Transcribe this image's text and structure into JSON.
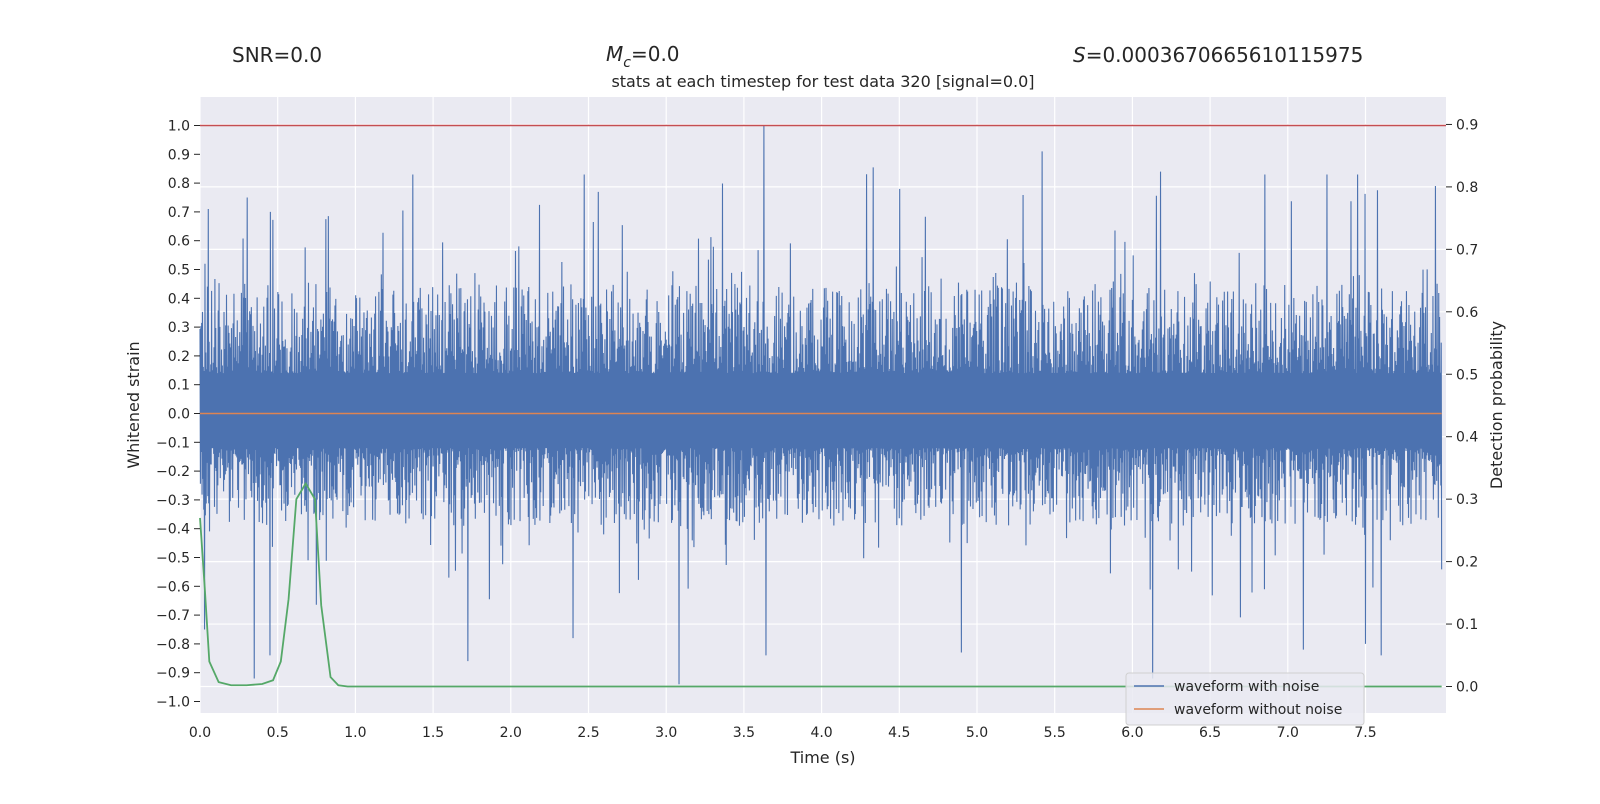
{
  "header": {
    "snr_label": "SNR=0.0",
    "mc_symbol": "M",
    "mc_subscript": "c",
    "mc_value": "=0.0",
    "s_symbol": "S",
    "s_value": "=0.0003670665610115975"
  },
  "chart_data": {
    "type": "line",
    "title": "stats at each timestep for test data 320 [signal=0.0]",
    "xlabel": "Time (s)",
    "ylabel": "Whitened strain",
    "y2label": "Detection probability",
    "xlim": [
      0.0,
      8.0
    ],
    "ylim": [
      -1.05,
      1.05
    ],
    "y2lim": [
      -0.055,
      0.945
    ],
    "xticks": [
      "0.0",
      "0.5",
      "1.0",
      "1.5",
      "2.0",
      "2.5",
      "3.0",
      "3.5",
      "4.0",
      "4.5",
      "5.0",
      "5.5",
      "6.0",
      "6.5",
      "7.0",
      "7.5"
    ],
    "yticks": [
      "1.0",
      "0.9",
      "0.8",
      "0.7",
      "0.6",
      "0.5",
      "0.4",
      "0.3",
      "0.2",
      "0.1",
      "0.0",
      "−0.1",
      "−0.2",
      "−0.3",
      "−0.4",
      "−0.5",
      "−0.6",
      "−0.7",
      "−0.8",
      "−0.9",
      "−1.0"
    ],
    "y2ticks": [
      "0.9",
      "0.8",
      "0.7",
      "0.6",
      "0.5",
      "0.4",
      "0.3",
      "0.2",
      "0.1",
      "0.0"
    ],
    "hline": {
      "y": 1.0,
      "color": "#c44e52"
    },
    "series": [
      {
        "name": "waveform with noise",
        "color": "#4c72b0",
        "axis": "left",
        "t_end": 7.99,
        "upper_typical": 0.35,
        "lower_typical": -0.3,
        "spikes": [
          {
            "x": 0.03,
            "y": 0.52
          },
          {
            "x": 0.05,
            "y": 0.71
          },
          {
            "x": 0.03,
            "y": -0.75
          },
          {
            "x": 0.3,
            "y": 0.75
          },
          {
            "x": 0.45,
            "y": 0.7
          },
          {
            "x": 0.35,
            "y": -0.92
          },
          {
            "x": 0.45,
            "y": -0.84
          },
          {
            "x": 1.37,
            "y": 0.83
          },
          {
            "x": 1.72,
            "y": -0.86
          },
          {
            "x": 2.47,
            "y": 0.83
          },
          {
            "x": 3.08,
            "y": -0.94
          },
          {
            "x": 3.63,
            "y": 1.0
          },
          {
            "x": 3.64,
            "y": -0.84
          },
          {
            "x": 4.5,
            "y": 0.78
          },
          {
            "x": 5.42,
            "y": 0.91
          },
          {
            "x": 6.18,
            "y": 0.84
          },
          {
            "x": 6.13,
            "y": -0.92
          },
          {
            "x": 6.85,
            "y": 0.83
          },
          {
            "x": 7.25,
            "y": 0.83
          },
          {
            "x": 7.45,
            "y": 0.83
          },
          {
            "x": 7.6,
            "y": -0.84
          },
          {
            "x": 7.95,
            "y": 0.79
          },
          {
            "x": 7.5,
            "y": -0.8
          },
          {
            "x": 7.1,
            "y": -0.82
          },
          {
            "x": 4.9,
            "y": -0.83
          },
          {
            "x": 2.4,
            "y": -0.78
          }
        ]
      },
      {
        "name": "waveform without noise",
        "color": "#dd8452",
        "axis": "left",
        "x": [
          0.0,
          7.99
        ],
        "y": [
          0.0,
          0.0
        ]
      },
      {
        "name": "detection probability",
        "color": "#55a868",
        "axis": "right",
        "x": [
          0.0,
          0.03,
          0.06,
          0.12,
          0.2,
          0.3,
          0.4,
          0.47,
          0.52,
          0.57,
          0.62,
          0.68,
          0.74,
          0.78,
          0.84,
          0.89,
          0.95,
          7.99
        ],
        "y": [
          0.27,
          0.16,
          0.04,
          0.007,
          0.002,
          0.002,
          0.004,
          0.01,
          0.04,
          0.14,
          0.3,
          0.325,
          0.3,
          0.13,
          0.015,
          0.002,
          0.0,
          0.0
        ]
      }
    ],
    "legend": {
      "position": "lower-right",
      "entries": [
        {
          "label": "waveform with noise",
          "color": "#4c72b0"
        },
        {
          "label": "waveform without noise",
          "color": "#dd8452"
        }
      ]
    }
  }
}
